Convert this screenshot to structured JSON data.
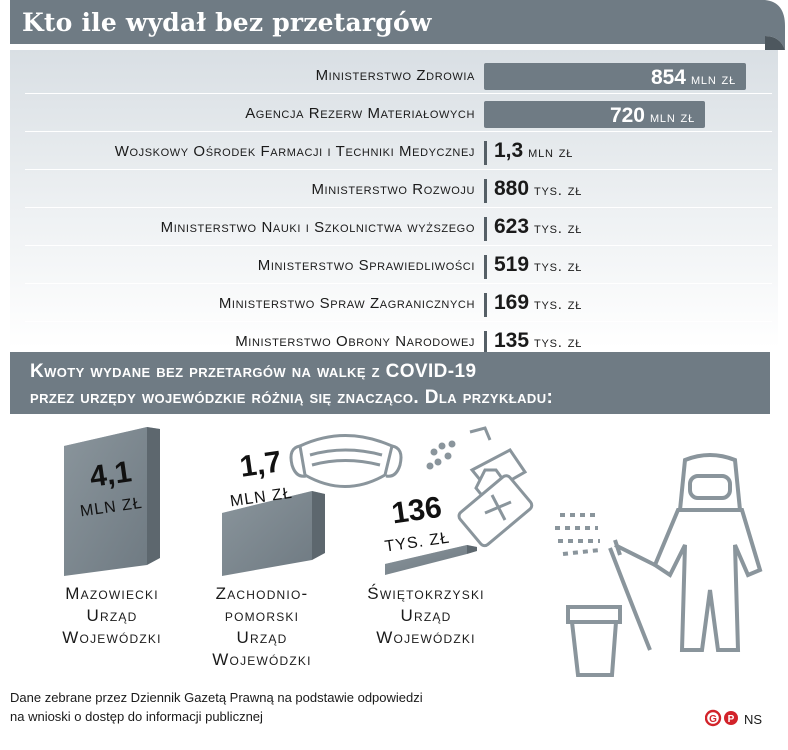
{
  "title": "Kto ile wydał bez przetargów",
  "colors": {
    "bar": "#6f7b84",
    "dark": "#555f66",
    "panel": "#d9dfe4",
    "logo_red": "#d2232a"
  },
  "chart_data": {
    "type": "bar",
    "title": "Kto ile wydał bez przetargów",
    "categories": [
      "Ministerstwo Zdrowia",
      "Agencja Rezerw Materiałowych",
      "Wojskowy Ośrodek Farmacji i Techniki Medycznej",
      "Ministerstwo Rozwoju",
      "Ministerstwo Nauki i Szkolnictwa wyższego",
      "Ministerstwo Sprawiedliwości",
      "Ministerstwo Spraw Zagranicznych",
      "Ministerstwo Obrony Narodowej"
    ],
    "values": [
      854000000,
      720000000,
      1300000,
      880000,
      623000,
      519000,
      169000,
      135000
    ],
    "value_labels": [
      {
        "num": "854",
        "unit": "mln zł"
      },
      {
        "num": "720",
        "unit": "mln zł"
      },
      {
        "num": "1,3",
        "unit": "mln zł"
      },
      {
        "num": "880",
        "unit": "tys. zł"
      },
      {
        "num": "623",
        "unit": "tys. zł"
      },
      {
        "num": "519",
        "unit": "tys. zł"
      },
      {
        "num": "169",
        "unit": "tys. zł"
      },
      {
        "num": "135",
        "unit": "tys. zł"
      }
    ],
    "max_value": 854000000
  },
  "voivodeship": {
    "heading_line1": "Kwoty wydane bez przetargów na walkę z COVID-19",
    "heading_line2": "przez urzędy wojewódzkie różnią się znacząco. Dla przykładu:",
    "items": [
      {
        "num": "4,1",
        "unit": "mln zł",
        "value": 4100000,
        "name": [
          "Mazowiecki",
          "Urząd",
          "Wojewódzki"
        ]
      },
      {
        "num": "1,7",
        "unit": "mln zł",
        "value": 1700000,
        "name": [
          "Zachodnio-",
          "pomorski",
          "Urząd",
          "Wojewódzki"
        ]
      },
      {
        "num": "136",
        "unit": "tys. zł",
        "value": 136000,
        "name": [
          "Świętokrzyski",
          "Urząd",
          "Wojewódzki"
        ]
      }
    ]
  },
  "footer": {
    "line1": "Dane zebrane przez Dziennik Gazetą Prawną na podstawie odpowiedzi",
    "line2": "na wnioski o dostęp do informacji publicznej",
    "credit": "NS"
  },
  "icons": [
    "mask-icon",
    "spray-bottle-icon",
    "hazmat-worker-icon",
    "bucket-icon",
    "publisher-logo-icon"
  ]
}
